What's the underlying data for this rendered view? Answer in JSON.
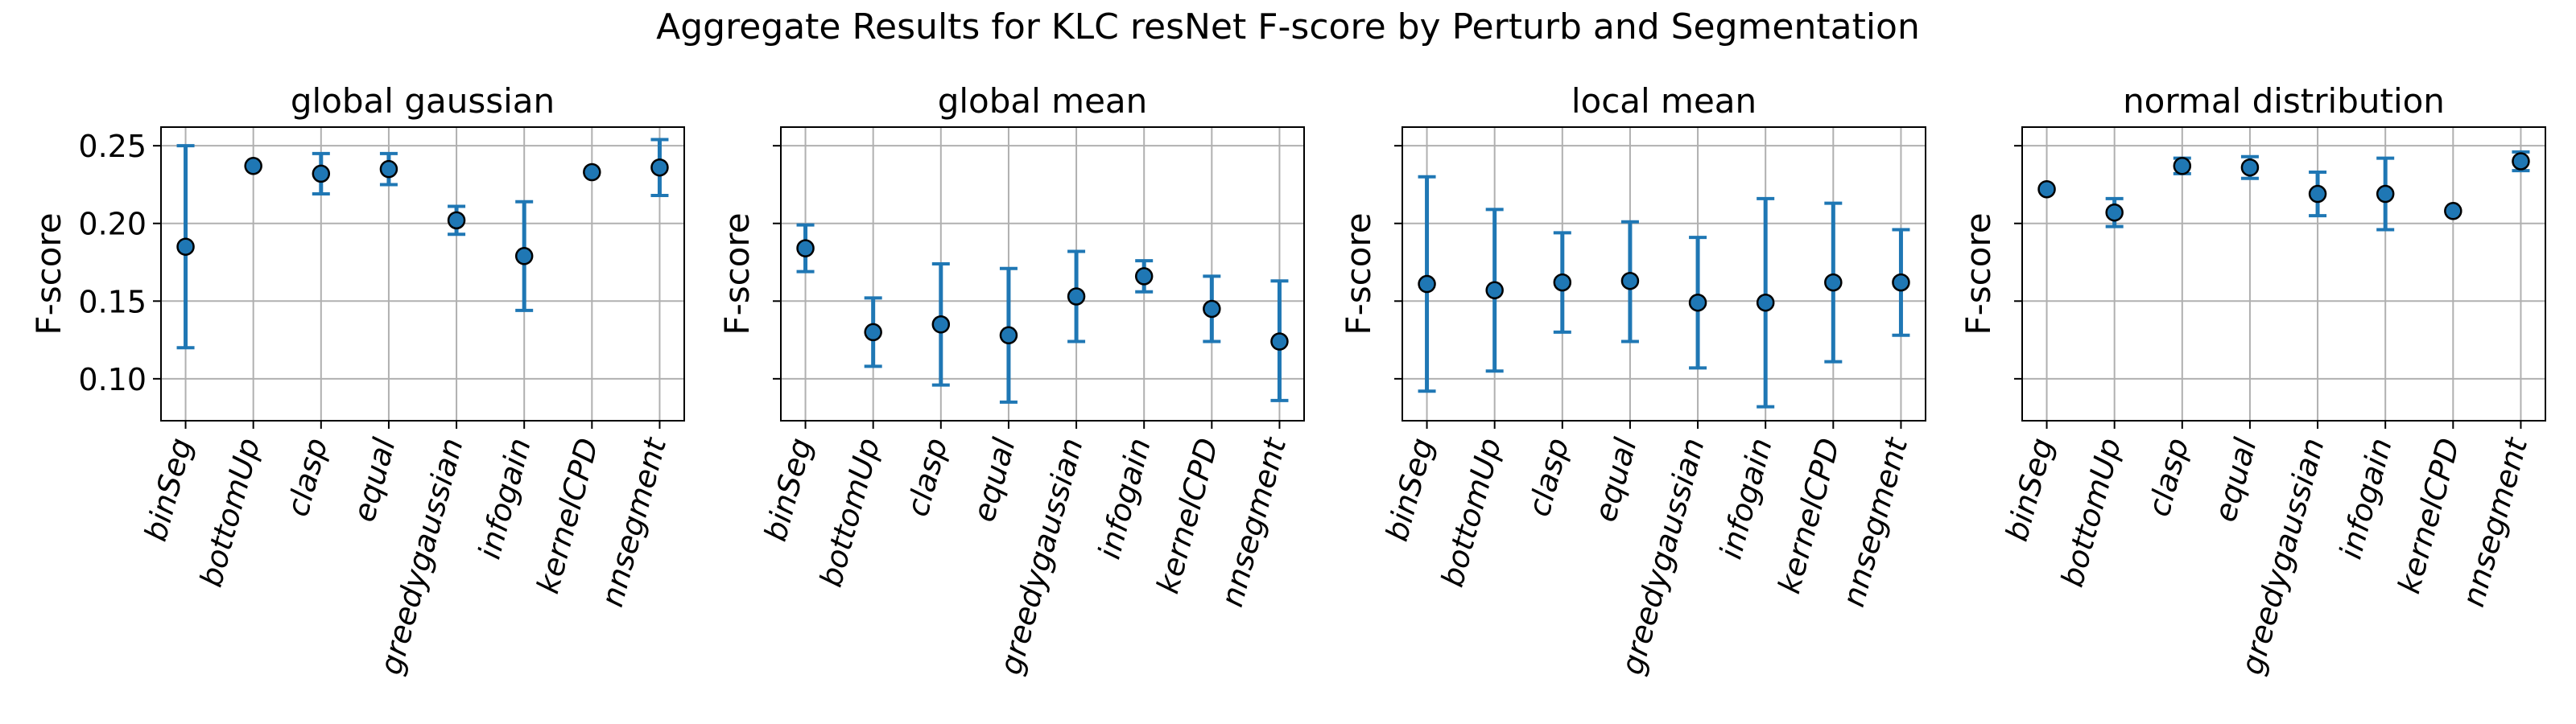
{
  "figure": {
    "suptitle": "Aggregate Results for KLC resNet F-score by Perturb and Segmentation"
  },
  "style": {
    "point_color": "#1f77b4",
    "edge_color": "#000000",
    "grid_color": "#b0b0b0"
  },
  "chart_data": [
    {
      "type": "scatter",
      "title": "global gaussian",
      "ylabel": "F-score",
      "xlabel": "",
      "ylim": [
        0.073,
        0.262
      ],
      "yticks": [
        0.1,
        0.15,
        0.2,
        0.25
      ],
      "ytick_labels": [
        "0.10",
        "0.15",
        "0.20",
        "0.25"
      ],
      "categories": [
        "binSeg",
        "bottomUp",
        "clasp",
        "equal",
        "greedygaussian",
        "infogain",
        "kernelCPD",
        "nnsegment"
      ],
      "values": [
        0.185,
        0.237,
        0.232,
        0.235,
        0.202,
        0.179,
        0.233,
        0.236
      ],
      "error_low": [
        0.12,
        0.237,
        0.219,
        0.225,
        0.193,
        0.144,
        0.233,
        0.218
      ],
      "error_high": [
        0.25,
        0.237,
        0.245,
        0.245,
        0.211,
        0.214,
        0.233,
        0.254
      ],
      "grid": true
    },
    {
      "type": "scatter",
      "title": "global mean",
      "ylabel": "F-score",
      "xlabel": "",
      "ylim": [
        0.073,
        0.262
      ],
      "yticks": [
        0.1,
        0.15,
        0.2,
        0.25
      ],
      "ytick_labels": [
        "",
        "",
        "",
        ""
      ],
      "categories": [
        "binSeg",
        "bottomUp",
        "clasp",
        "equal",
        "greedygaussian",
        "infogain",
        "kernelCPD",
        "nnsegment"
      ],
      "values": [
        0.184,
        0.13,
        0.135,
        0.128,
        0.153,
        0.166,
        0.145,
        0.124
      ],
      "error_low": [
        0.169,
        0.108,
        0.096,
        0.085,
        0.124,
        0.156,
        0.124,
        0.086
      ],
      "error_high": [
        0.199,
        0.152,
        0.174,
        0.171,
        0.182,
        0.176,
        0.166,
        0.163
      ],
      "grid": true
    },
    {
      "type": "scatter",
      "title": "local mean",
      "ylabel": "F-score",
      "xlabel": "",
      "ylim": [
        0.073,
        0.262
      ],
      "yticks": [
        0.1,
        0.15,
        0.2,
        0.25
      ],
      "ytick_labels": [
        "",
        "",
        "",
        ""
      ],
      "categories": [
        "binSeg",
        "bottomUp",
        "clasp",
        "equal",
        "greedygaussian",
        "infogain",
        "kernelCPD",
        "nnsegment"
      ],
      "values": [
        0.161,
        0.157,
        0.162,
        0.163,
        0.149,
        0.149,
        0.162,
        0.162
      ],
      "error_low": [
        0.092,
        0.105,
        0.13,
        0.124,
        0.107,
        0.082,
        0.111,
        0.128
      ],
      "error_high": [
        0.23,
        0.209,
        0.194,
        0.201,
        0.191,
        0.216,
        0.213,
        0.196
      ],
      "grid": true
    },
    {
      "type": "scatter",
      "title": "normal distribution",
      "ylabel": "F-score",
      "xlabel": "",
      "ylim": [
        0.073,
        0.262
      ],
      "yticks": [
        0.1,
        0.15,
        0.2,
        0.25
      ],
      "ytick_labels": [
        "",
        "",
        "",
        ""
      ],
      "categories": [
        "binSeg",
        "bottomUp",
        "clasp",
        "equal",
        "greedygaussian",
        "infogain",
        "kernelCPD",
        "nnsegment"
      ],
      "values": [
        0.222,
        0.207,
        0.237,
        0.236,
        0.219,
        0.219,
        0.208,
        0.24
      ],
      "error_low": [
        0.222,
        0.198,
        0.232,
        0.229,
        0.205,
        0.196,
        0.208,
        0.234
      ],
      "error_high": [
        0.222,
        0.216,
        0.242,
        0.243,
        0.233,
        0.242,
        0.208,
        0.246
      ],
      "grid": true
    }
  ]
}
